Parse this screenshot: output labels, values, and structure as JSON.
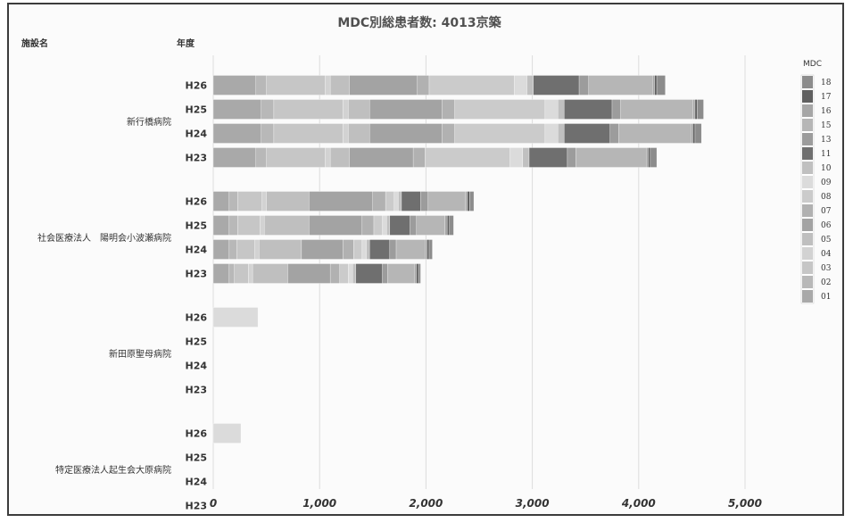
{
  "chart_data": {
    "type": "bar",
    "orientation": "horizontal",
    "stacked": true,
    "title": "MDC別総患者数: 4013京築",
    "header_facility": "施設名",
    "header_year": "年度",
    "legend_title": "MDC",
    "legend_placement": "right",
    "grid": true,
    "xlim": [
      0,
      5000
    ],
    "x_ticks": [
      "0",
      "1,000",
      "2,000",
      "3,000",
      "4,000",
      "5,000"
    ],
    "series_names": [
      "01",
      "02",
      "03",
      "04",
      "05",
      "06",
      "07",
      "08",
      "09",
      "10",
      "11",
      "13",
      "15",
      "16",
      "17",
      "18"
    ],
    "colors": [
      "#a9a9a9",
      "#b8b8b8",
      "#c6c6c6",
      "#d2d2d2",
      "#bfbfbf",
      "#a3a3a3",
      "#b1b1b1",
      "#cbcbcb",
      "#dbdbdb",
      "#c0c0c0",
      "#6f6f6f",
      "#9c9c9c",
      "#b6b6b6",
      "#a6a6a6",
      "#5f5f5f",
      "#8c8c8c"
    ],
    "facilities": [
      {
        "name": "新行橋病院",
        "years": [
          {
            "year": "H26",
            "values": [
              400,
              100,
              550,
              50,
              180,
              640,
              110,
              800,
              120,
              60,
              430,
              90,
              600,
              20,
              20,
              80
            ]
          },
          {
            "year": "H25",
            "values": [
              450,
              120,
              650,
              50,
              200,
              680,
              120,
              850,
              120,
              60,
              450,
              80,
              680,
              20,
              20,
              60
            ]
          },
          {
            "year": "H24",
            "values": [
              450,
              120,
              650,
              50,
              200,
              680,
              120,
              850,
              120,
              60,
              430,
              80,
              680,
              20,
              20,
              60
            ]
          },
          {
            "year": "H23",
            "values": [
              400,
              100,
              550,
              50,
              180,
              600,
              110,
              800,
              120,
              60,
              360,
              80,
              660,
              20,
              20,
              60
            ]
          }
        ]
      },
      {
        "name": "社会医療法人　陽明会小波瀬病院",
        "years": [
          {
            "year": "H26",
            "values": [
              150,
              80,
              230,
              40,
              400,
              600,
              120,
              80,
              40,
              30,
              180,
              70,
              350,
              20,
              20,
              40
            ]
          },
          {
            "year": "H25",
            "values": [
              150,
              80,
              210,
              40,
              420,
              500,
              110,
              80,
              40,
              30,
              190,
              60,
              270,
              20,
              20,
              40
            ]
          },
          {
            "year": "H24",
            "values": [
              150,
              70,
              170,
              40,
              400,
              390,
              100,
              80,
              40,
              30,
              190,
              60,
              270,
              20,
              20,
              30
            ]
          },
          {
            "year": "H23",
            "values": [
              150,
              50,
              130,
              40,
              330,
              400,
              90,
              80,
              40,
              30,
              250,
              50,
              250,
              20,
              20,
              20
            ]
          }
        ]
      },
      {
        "name": "新田原聖母病院",
        "years": [
          {
            "year": "H26",
            "values": [
              0,
              0,
              0,
              0,
              0,
              0,
              0,
              0,
              420,
              0,
              0,
              0,
              0,
              0,
              0,
              0
            ]
          },
          {
            "year": "H25",
            "values": [
              0,
              0,
              0,
              0,
              0,
              0,
              0,
              0,
              0,
              0,
              0,
              0,
              0,
              0,
              0,
              0
            ]
          },
          {
            "year": "H24",
            "values": [
              0,
              0,
              0,
              0,
              0,
              0,
              0,
              0,
              0,
              0,
              0,
              0,
              0,
              0,
              0,
              0
            ]
          },
          {
            "year": "H23",
            "values": [
              0,
              0,
              0,
              0,
              0,
              0,
              0,
              0,
              0,
              0,
              0,
              0,
              0,
              0,
              0,
              0
            ]
          }
        ]
      },
      {
        "name": "特定医療法人起生会大原病院",
        "years": [
          {
            "year": "H26",
            "values": [
              0,
              0,
              0,
              0,
              0,
              0,
              0,
              0,
              260,
              0,
              0,
              0,
              0,
              0,
              0,
              0
            ]
          },
          {
            "year": "H25",
            "values": [
              0,
              0,
              0,
              0,
              0,
              0,
              0,
              0,
              0,
              0,
              0,
              0,
              0,
              0,
              0,
              0
            ]
          },
          {
            "year": "H24",
            "values": [
              0,
              0,
              0,
              0,
              0,
              0,
              0,
              0,
              0,
              0,
              0,
              0,
              0,
              0,
              0,
              0
            ]
          },
          {
            "year": "H23",
            "values": [
              0,
              0,
              0,
              0,
              0,
              0,
              0,
              0,
              0,
              0,
              0,
              0,
              0,
              0,
              0,
              0
            ]
          }
        ]
      }
    ]
  }
}
